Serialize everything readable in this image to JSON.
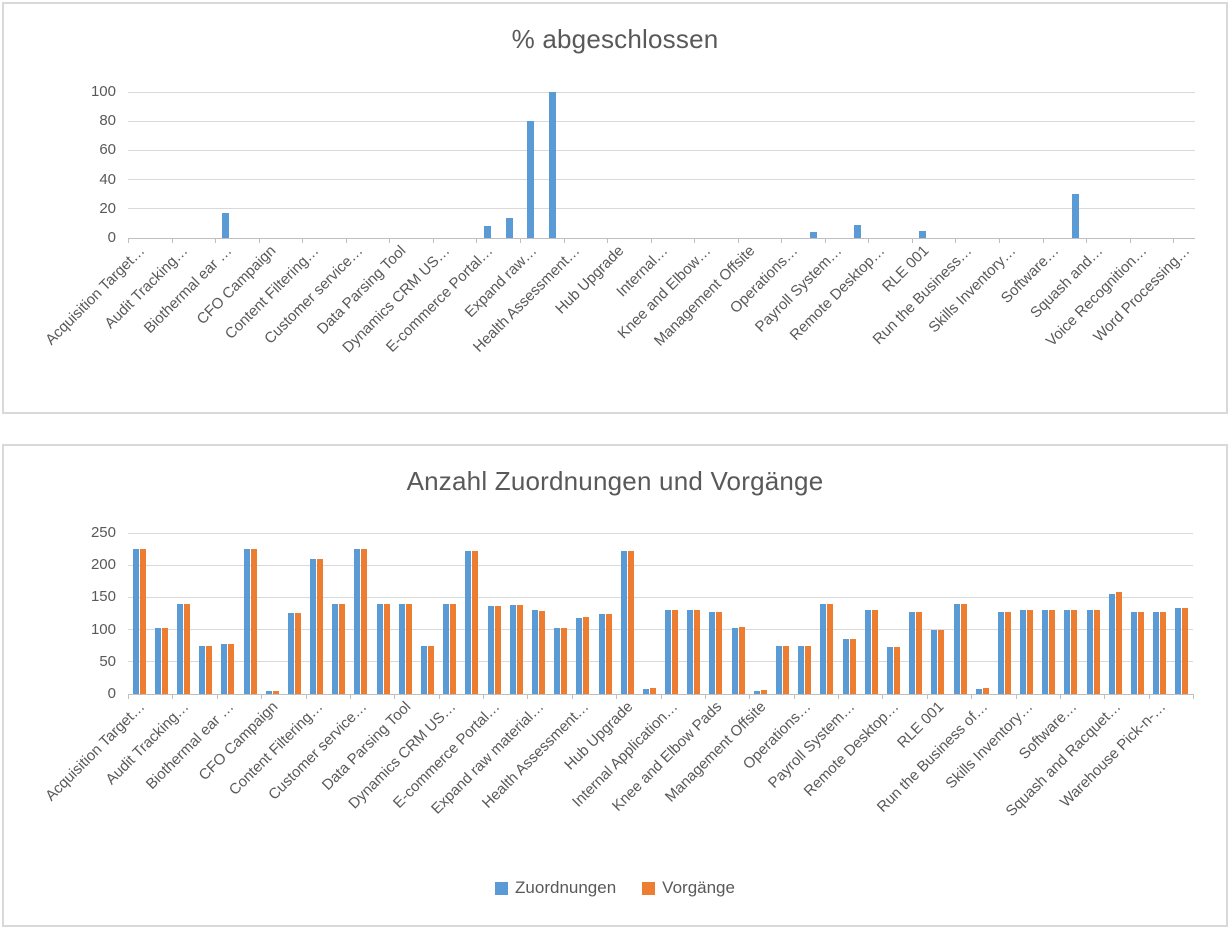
{
  "colors": {
    "blue": "#5B9BD5",
    "orange": "#ED7D31",
    "title_text": "#595959",
    "axis_text": "#595959",
    "gridline": "#D9D9D9",
    "axis_line": "#BFBFBF",
    "panel_border": "#D9D9D9"
  },
  "chart_data": [
    {
      "type": "bar",
      "title": "% abgeschlossen",
      "ylabel": "",
      "xlabel": "",
      "ylim": [
        0,
        100
      ],
      "yticks": [
        0,
        20,
        40,
        60,
        80,
        100
      ],
      "grid": true,
      "legend": false,
      "bar_color": "#5B9BD5",
      "num_category_slots": 49,
      "label_every": 2,
      "category_tick_labels": [
        "Acquisition Target…",
        "Audit Tracking…",
        "Biothermal ear …",
        "CFO Campaign",
        "Content Filtering…",
        "Customer service…",
        "Data Parsing Tool",
        "Dynamics CRM US…",
        "E-commerce Portal…",
        "Expand raw…",
        "Health Assessment…",
        "Hub Upgrade",
        "Internal…",
        "Knee and Elbow…",
        "Management Offsite",
        "Operations…",
        "Payroll System…",
        "Remote Desktop…",
        "RLE 001",
        "Run the Business…",
        "Skills Inventory…",
        "Software…",
        "Squash and…",
        "Voice Recognition…",
        "Word Processing…"
      ],
      "bars": [
        {
          "slot": 4,
          "value": 17
        },
        {
          "slot": 16,
          "value": 8
        },
        {
          "slot": 17,
          "value": 14
        },
        {
          "slot": 18,
          "value": 80
        },
        {
          "slot": 19,
          "value": 100
        },
        {
          "slot": 31,
          "value": 4
        },
        {
          "slot": 33,
          "value": 9
        },
        {
          "slot": 36,
          "value": 5
        },
        {
          "slot": 43,
          "value": 30
        }
      ]
    },
    {
      "type": "grouped-bar",
      "title": "Anzahl Zuordnungen und Vorgänge",
      "ylabel": "",
      "xlabel": "",
      "ylim": [
        0,
        250
      ],
      "yticks": [
        0,
        50,
        100,
        150,
        200,
        250
      ],
      "grid": true,
      "legend": true,
      "legend_position": "bottom",
      "num_category_slots": 48,
      "label_every": 2,
      "category_tick_labels": [
        "Acquisition Target…",
        "Audit Tracking…",
        "Biothermal ear …",
        "CFO Campaign",
        "Content Filtering…",
        "Customer service…",
        "Data Parsing Tool",
        "Dynamics CRM US…",
        "E-commerce Portal…",
        "Expand raw material…",
        "Health Assessment…",
        "Hub Upgrade",
        "Internal Application…",
        "Knee and Elbow Pads",
        "Management Offsite",
        "Operations…",
        "Payroll System…",
        "Remote Desktop…",
        "RLE 001",
        "Run the Business of…",
        "Skills Inventory…",
        "Software…",
        "Squash and Racquet…",
        "Warehouse Pick-n-…"
      ],
      "series": [
        {
          "name": "Zuordnungen",
          "color": "#5B9BD5",
          "values": [
            225,
            103,
            140,
            75,
            77,
            225,
            5,
            126,
            210,
            139,
            225,
            140,
            139,
            75,
            140,
            222,
            137,
            138,
            130,
            103,
            118,
            125,
            222,
            8,
            130,
            130,
            127,
            103,
            5,
            75,
            75,
            140,
            85,
            130,
            73,
            127,
            100,
            140,
            8,
            127,
            130,
            130,
            130,
            130,
            156,
            127,
            127,
            133
          ]
        },
        {
          "name": "Vorgänge",
          "color": "#ED7D31",
          "values": [
            225,
            103,
            140,
            75,
            77,
            225,
            5,
            126,
            210,
            139,
            225,
            140,
            139,
            75,
            140,
            222,
            137,
            138,
            129,
            103,
            119,
            125,
            222,
            9,
            130,
            130,
            127,
            104,
            6,
            75,
            75,
            140,
            85,
            130,
            73,
            127,
            100,
            140,
            9,
            127,
            130,
            130,
            130,
            130,
            158,
            127,
            127,
            133
          ]
        }
      ]
    }
  ]
}
